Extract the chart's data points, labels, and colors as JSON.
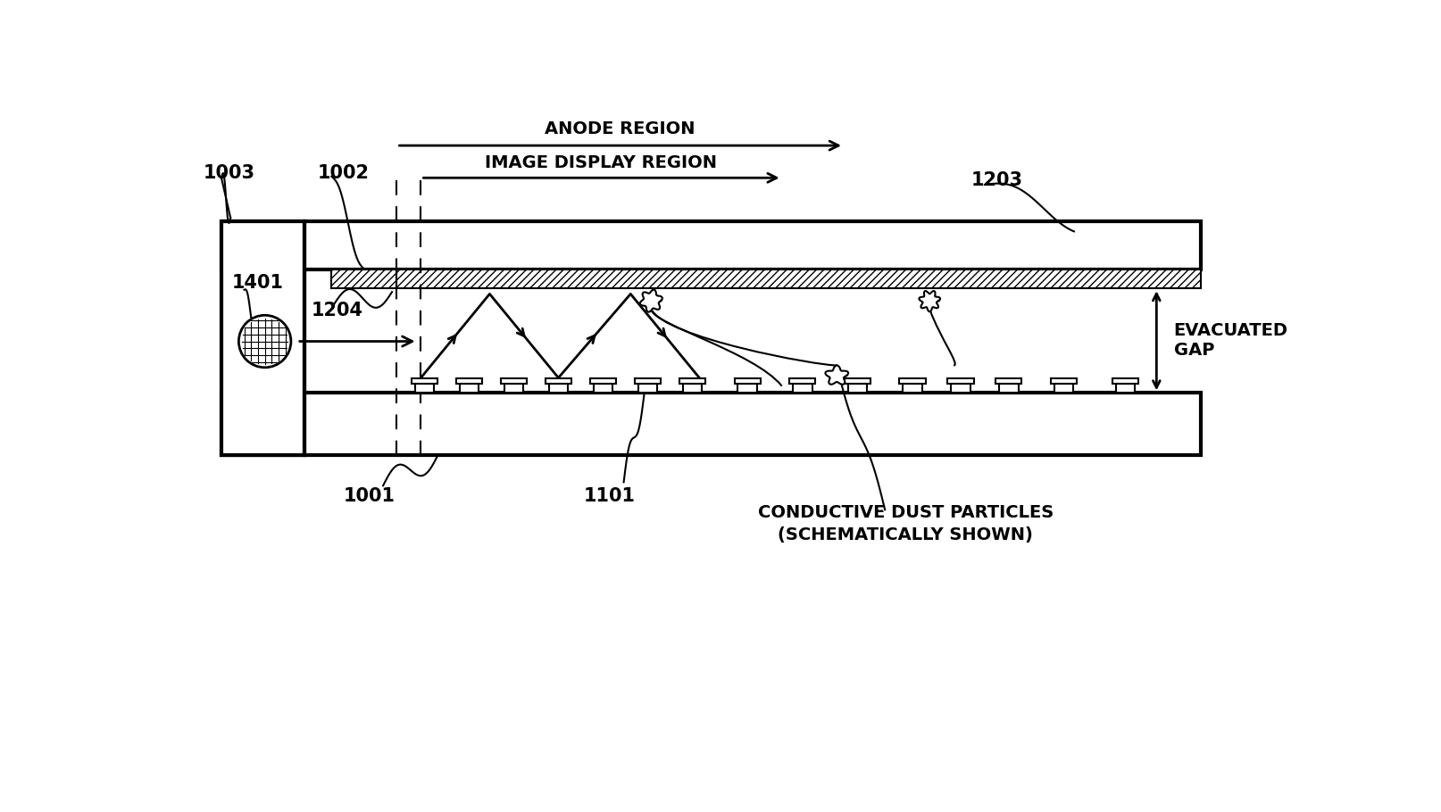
{
  "bg_color": "#ffffff",
  "line_color": "#000000",
  "fig_width": 16.14,
  "fig_height": 9.1,
  "labels": {
    "anode_region": "ANODE REGION",
    "image_display_region": "IMAGE DISPLAY REGION",
    "evacuated_gap": "EVACUATED\nGAP",
    "conductive_dust": "CONDUCTIVE DUST PARTICLES\n(SCHEMATICALLY SHOWN)",
    "n1003": "1003",
    "n1002": "1002",
    "n1203": "1203",
    "n1401": "1401",
    "n1204": "1204",
    "n1001": "1001",
    "n1101": "1101"
  },
  "fontsize_labels": 14,
  "fontsize_numbers": 15
}
